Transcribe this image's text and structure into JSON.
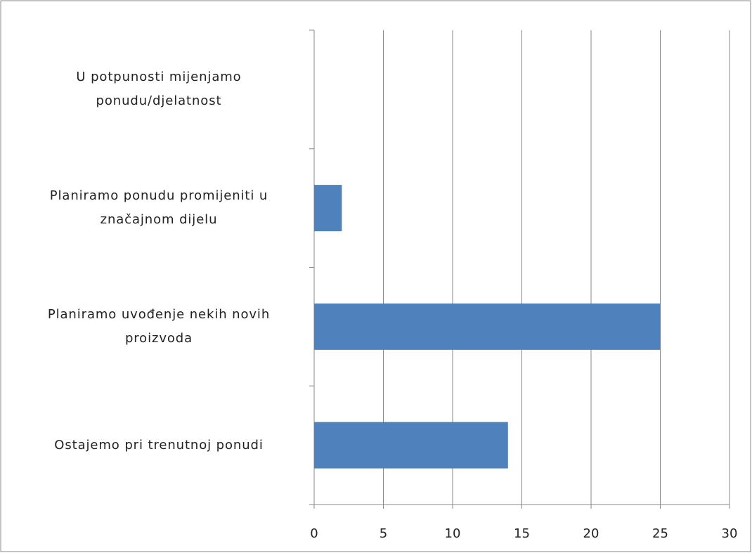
{
  "chart_data": {
    "type": "bar",
    "orientation": "horizontal",
    "categories": [
      "U potpunosti mijenjamo ponudu/djelatnost",
      "Planiramo ponudu promijeniti u značajnom dijelu",
      "Planiramo uvođenje nekih novih proizvoda",
      "Ostajemo pri trenutnoj ponudi"
    ],
    "values": [
      0,
      2,
      25,
      14
    ],
    "color": "#4f81bd",
    "xlim": [
      0,
      30
    ],
    "xticks": [
      0,
      5,
      10,
      15,
      20,
      25,
      30
    ],
    "grid": true
  }
}
